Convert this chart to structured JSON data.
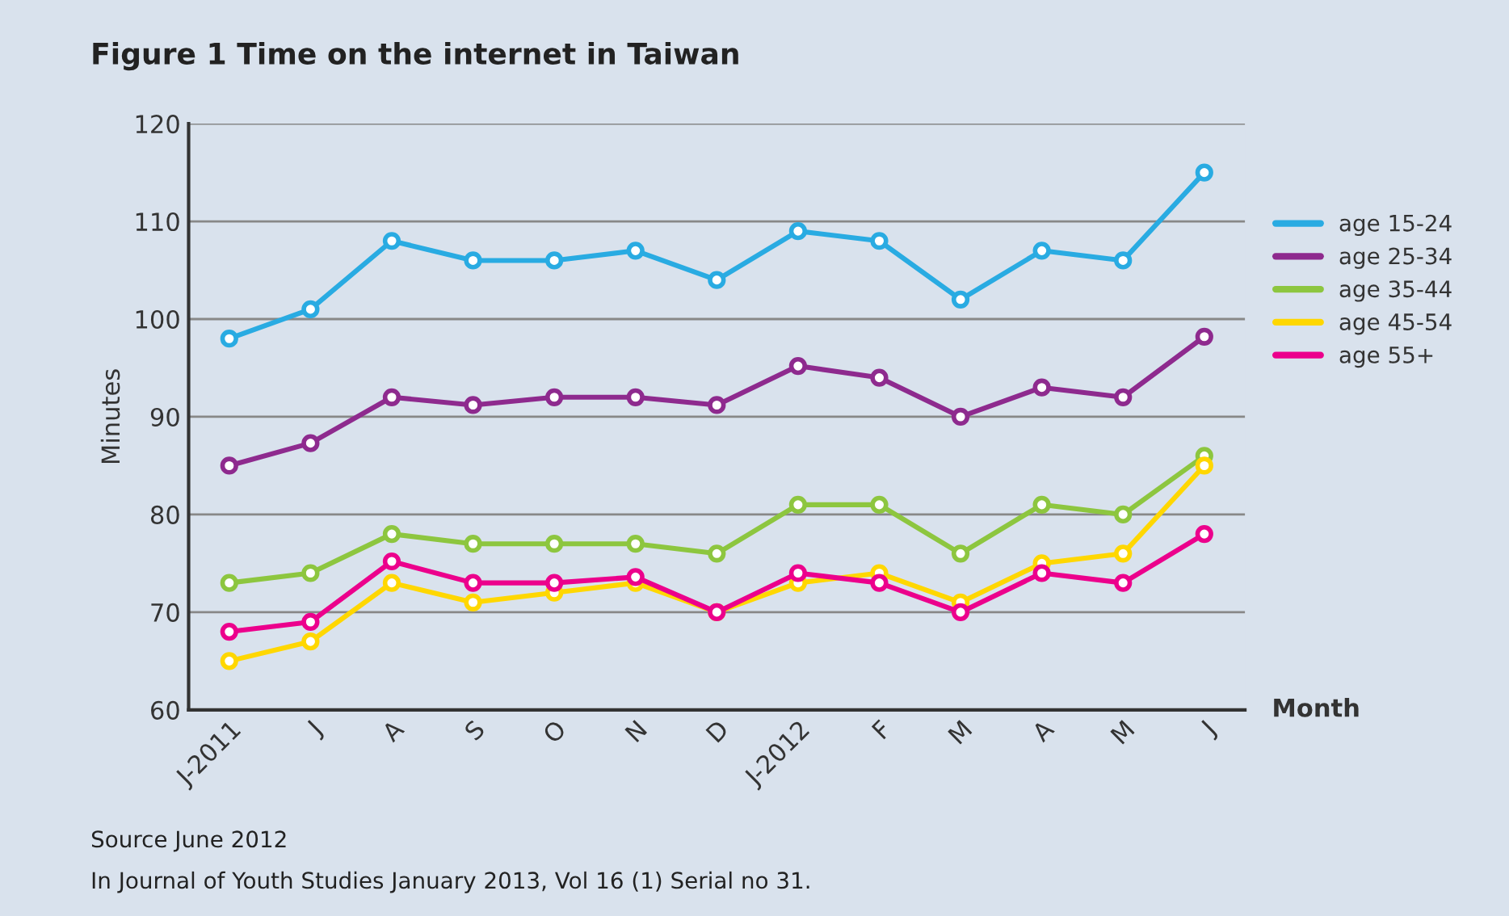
{
  "chart_data": {
    "type": "line",
    "title": "Figure 1 Time on the internet in Taiwan",
    "xlabel": "Month",
    "ylabel": "Minutes",
    "categories": [
      "J-2011",
      "J",
      "A",
      "S",
      "O",
      "N",
      "D",
      "J-2012",
      "F",
      "M",
      "A",
      "M",
      "J"
    ],
    "series": [
      {
        "name": "age 15-24",
        "color": "#29abe2",
        "values": [
          98,
          101,
          108,
          106,
          106,
          107,
          104,
          109,
          108,
          102,
          107,
          106,
          115
        ]
      },
      {
        "name": "age 25-34",
        "color": "#8e2a8e",
        "values": [
          85,
          87.3,
          92,
          91.2,
          92,
          92,
          91.2,
          95.2,
          94,
          90,
          93,
          92,
          98.2
        ]
      },
      {
        "name": "age 35-44",
        "color": "#8dc63f",
        "values": [
          73,
          74,
          78,
          77,
          77,
          77,
          76,
          81,
          81,
          76,
          81,
          80,
          86
        ]
      },
      {
        "name": "age 45-54",
        "color": "#ffd700",
        "values": [
          65,
          67,
          73,
          71,
          72,
          73,
          70,
          73,
          74,
          71,
          75,
          76,
          85
        ]
      },
      {
        "name": "age 55+",
        "color": "#ec008c",
        "values": [
          68,
          69,
          75.2,
          73,
          73,
          73.6,
          70,
          74,
          73,
          70,
          74,
          73,
          78
        ]
      }
    ],
    "ylim": [
      60,
      120
    ],
    "yticks": [
      60,
      70,
      80,
      90,
      100,
      110,
      120
    ],
    "grid": "y",
    "legend": "right",
    "marker": "circle",
    "line_style": "solid",
    "annotations": [
      "Source June 2012",
      "In Journal of Youth Studies January 2013, Vol 16 (1) Serial no 31."
    ]
  }
}
